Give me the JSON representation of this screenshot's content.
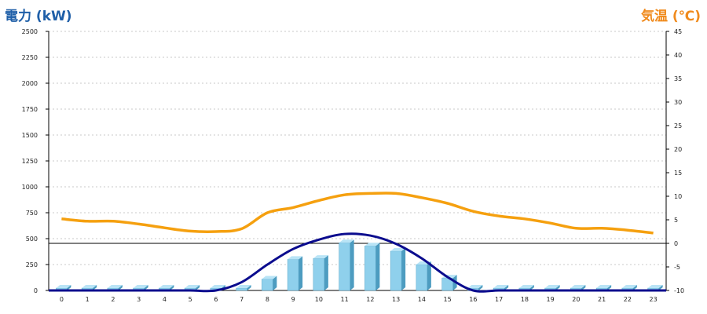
{
  "chart_data": {
    "type": "bar",
    "title": "",
    "left_axis_title": "電力 (kW)",
    "right_axis_title": "気温 (℃)",
    "categories": [
      "0",
      "1",
      "2",
      "3",
      "4",
      "5",
      "6",
      "7",
      "8",
      "9",
      "10",
      "11",
      "12",
      "13",
      "14",
      "15",
      "16",
      "17",
      "18",
      "19",
      "20",
      "21",
      "22",
      "23"
    ],
    "left_ylim": [
      0,
      2500
    ],
    "left_yticks": [
      "0",
      "250",
      "500",
      "750",
      "1000",
      "1250",
      "1500",
      "1750",
      "2000",
      "2250",
      "2500"
    ],
    "right_ylim": [
      -10,
      45
    ],
    "right_yticks": [
      "-10",
      "-5",
      "0",
      "5",
      "10",
      "15",
      "20",
      "25",
      "30",
      "35",
      "40",
      "45"
    ],
    "grid": true,
    "series": [
      {
        "type": "bar",
        "axis": "left",
        "values": [
          0,
          0,
          0,
          0,
          0,
          0,
          0,
          0,
          110,
          300,
          310,
          460,
          430,
          380,
          250,
          120,
          0,
          0,
          0,
          0,
          0,
          0,
          0,
          0
        ],
        "color": "#8fd0ec"
      },
      {
        "type": "line",
        "axis": "left",
        "values": [
          0,
          0,
          0,
          0,
          0,
          0,
          0,
          80,
          250,
          400,
          490,
          545,
          530,
          450,
          310,
          130,
          0,
          0,
          0,
          0,
          0,
          0,
          0,
          0
        ],
        "color": "#0b0c8e"
      },
      {
        "type": "line",
        "axis": "right",
        "values": [
          5.2,
          4.7,
          4.7,
          4.1,
          3.3,
          2.6,
          2.5,
          3.1,
          6.5,
          7.6,
          9.1,
          10.3,
          10.6,
          10.6,
          9.7,
          8.5,
          6.8,
          5.8,
          5.2,
          4.3,
          3.2,
          3.2,
          2.8,
          2.2
        ],
        "color": "#f5a00f"
      }
    ],
    "reference_line": {
      "axis": "right",
      "value": 0,
      "color": "#000000"
    }
  }
}
